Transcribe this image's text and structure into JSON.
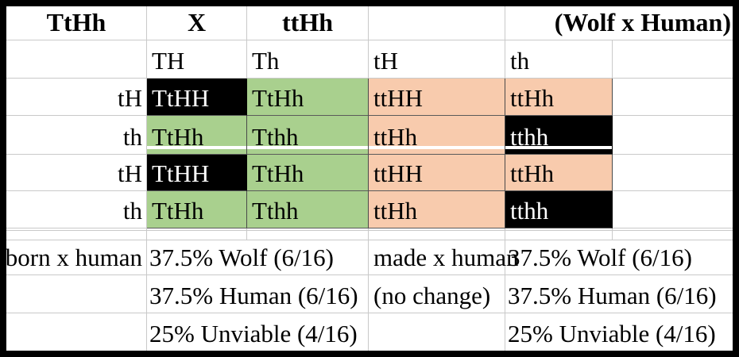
{
  "table": {
    "header": {
      "parent1": "TtHh",
      "cross_symbol": "X",
      "parent2": "ttHh",
      "title": "(Wolf x Human)"
    },
    "gametes_top": [
      "TH",
      "Th",
      "tH",
      "th"
    ],
    "punnett": {
      "rows": [
        {
          "label": "tH",
          "cells": [
            {
              "text": "TtHH",
              "color": "black"
            },
            {
              "text": "TtHh",
              "color": "green"
            },
            {
              "text": "ttHH",
              "color": "peach"
            },
            {
              "text": "ttHh",
              "color": "peach"
            }
          ]
        },
        {
          "label": "th",
          "cells": [
            {
              "text": "TtHh",
              "color": "green"
            },
            {
              "text": "Tthh",
              "color": "green"
            },
            {
              "text": "ttHh",
              "color": "peach"
            },
            {
              "text": "tthh",
              "color": "black"
            }
          ]
        },
        {
          "label": "tH",
          "cells": [
            {
              "text": "TtHH",
              "color": "black"
            },
            {
              "text": "TtHh",
              "color": "green"
            },
            {
              "text": "ttHH",
              "color": "peach"
            },
            {
              "text": "ttHh",
              "color": "peach"
            }
          ]
        },
        {
          "label": "th",
          "cells": [
            {
              "text": "TtHh",
              "color": "green"
            },
            {
              "text": "Tthh",
              "color": "green"
            },
            {
              "text": "ttHh",
              "color": "peach"
            },
            {
              "text": "tthh",
              "color": "black"
            }
          ]
        }
      ]
    },
    "results": {
      "left": {
        "label": "born x human",
        "lines": [
          "37.5% Wolf (6/16)",
          "37.5% Human (6/16)",
          "25% Unviable (4/16)"
        ]
      },
      "right": {
        "label": "made x human",
        "note": "(no change)",
        "lines": [
          "37.5% Wolf (6/16)",
          "37.5% Human (6/16)",
          "25% Unviable (4/16)"
        ]
      }
    },
    "colors": {
      "green": "#A9D08E",
      "peach": "#F8CBAD",
      "black": "#000000",
      "grid": "#C9C9C9"
    }
  }
}
